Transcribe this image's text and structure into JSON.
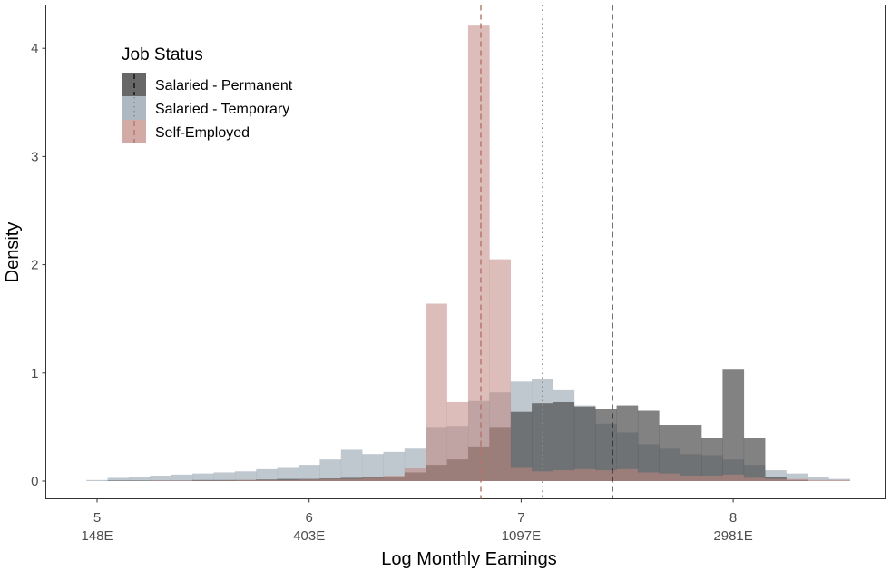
{
  "chart_data": {
    "type": "histogram",
    "xlabel": "Log Monthly Earnings",
    "ylabel": "Density",
    "xlim": [
      4.94,
      8.55
    ],
    "ylim": [
      0,
      4.3
    ],
    "x_ticks": [
      {
        "value": 5,
        "label": "5",
        "sublabel": "148E"
      },
      {
        "value": 6,
        "label": "6",
        "sublabel": "403E"
      },
      {
        "value": 7,
        "label": "7",
        "sublabel": "1097E"
      },
      {
        "value": 8,
        "label": "8",
        "sublabel": "2981E"
      }
    ],
    "y_ticks": [
      0,
      1,
      2,
      3,
      4
    ],
    "grid": false,
    "legend": {
      "title": "Job Status",
      "position": "top-left"
    },
    "bin_start": 4.95,
    "bin_width": 0.1,
    "series": [
      {
        "name": "Salaried - Temporary",
        "color": "#8a9aa7",
        "opacity": 0.55,
        "mean_line": {
          "x": 7.1,
          "style": "dotted",
          "color": "#8a8a8a"
        },
        "values": [
          0.01,
          0.03,
          0.04,
          0.05,
          0.06,
          0.07,
          0.08,
          0.09,
          0.11,
          0.13,
          0.15,
          0.2,
          0.29,
          0.25,
          0.27,
          0.3,
          0.5,
          0.51,
          0.74,
          0.82,
          0.92,
          0.94,
          0.84,
          0.7,
          0.53,
          0.45,
          0.34,
          0.3,
          0.25,
          0.24,
          0.2,
          0.15,
          0.1,
          0.07,
          0.04,
          0.02
        ]
      },
      {
        "name": "Salaried - Permanent",
        "color": "#4d4d4d",
        "opacity": 0.7,
        "mean_line": {
          "x": 7.43,
          "style": "dashed",
          "color": "#111111"
        },
        "values": [
          0.0,
          0.005,
          0.005,
          0.005,
          0.005,
          0.01,
          0.01,
          0.01,
          0.015,
          0.02,
          0.02,
          0.025,
          0.03,
          0.035,
          0.04,
          0.08,
          0.15,
          0.2,
          0.32,
          0.5,
          0.64,
          0.72,
          0.73,
          0.69,
          0.67,
          0.7,
          0.65,
          0.52,
          0.52,
          0.4,
          1.03,
          0.4,
          0.04,
          0.01,
          0.0,
          0.0
        ]
      },
      {
        "name": "Self-Employed",
        "color": "#c08780",
        "opacity": 0.55,
        "mean_line": {
          "x": 6.81,
          "style": "dashed",
          "color": "#b3736b"
        },
        "values": [
          0.0,
          0.0,
          0.0,
          0.005,
          0.005,
          0.005,
          0.005,
          0.01,
          0.01,
          0.01,
          0.015,
          0.02,
          0.02,
          0.03,
          0.05,
          0.12,
          1.64,
          0.73,
          4.21,
          2.05,
          0.13,
          0.09,
          0.1,
          0.11,
          0.1,
          0.11,
          0.08,
          0.07,
          0.05,
          0.05,
          0.06,
          0.03,
          0.02,
          0.02,
          0.01,
          0.01
        ]
      }
    ]
  }
}
